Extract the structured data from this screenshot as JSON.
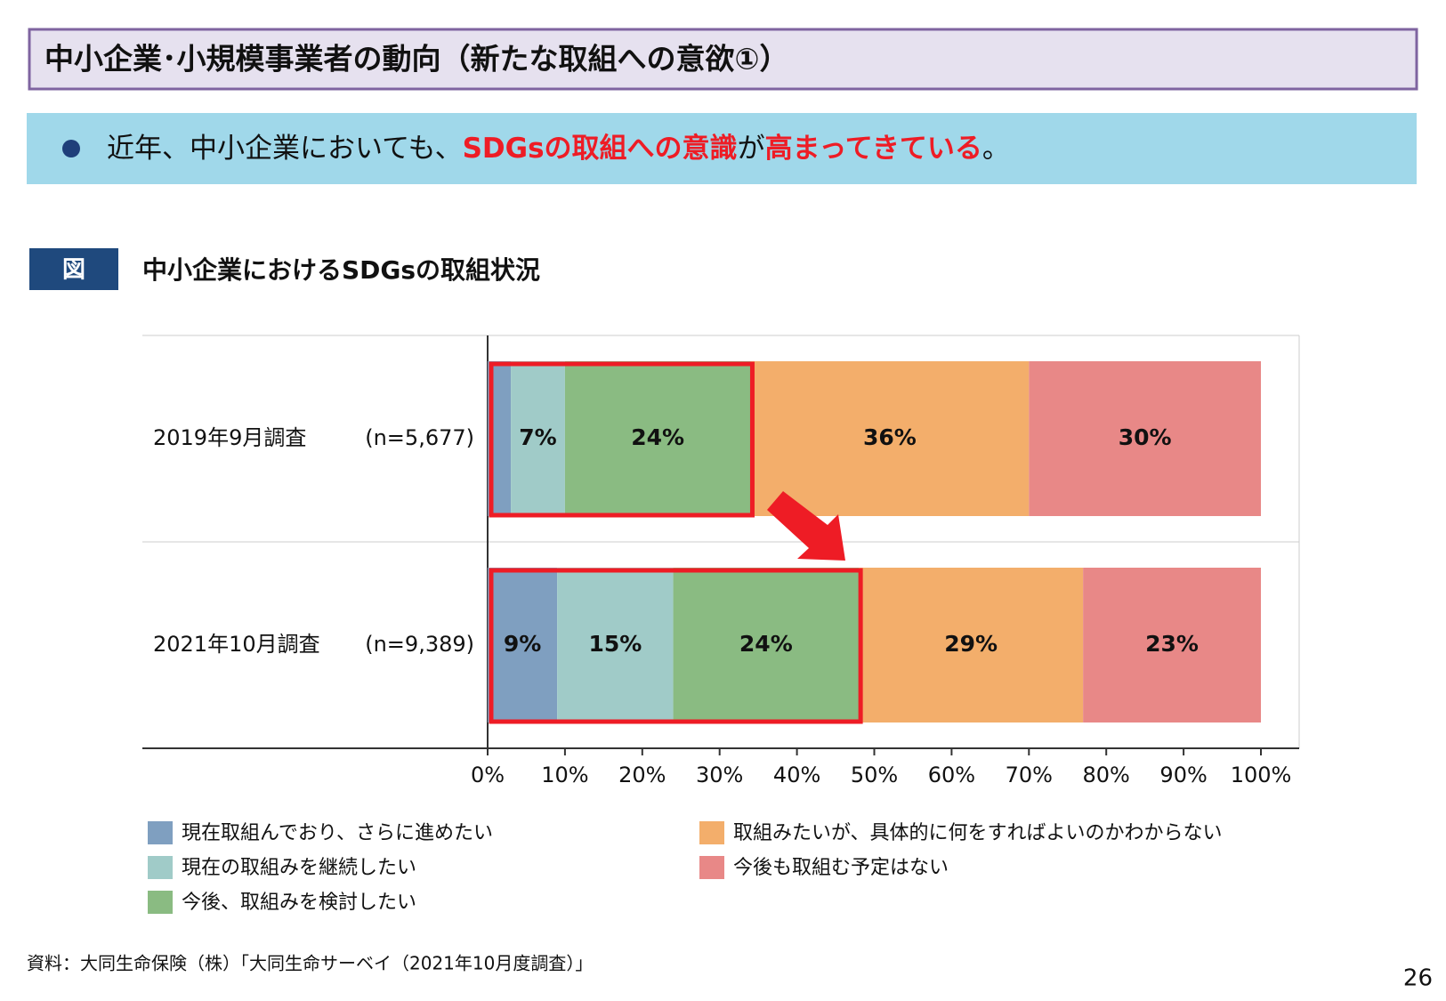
{
  "header": {
    "title": "中小企業･小規模事業者の動向（新たな取組への意欲①）"
  },
  "bullet": {
    "segments": [
      "近年、中小企業においても、",
      "SDGsの取組への意識",
      "が",
      "高まってきている",
      "。"
    ]
  },
  "figure_label": "図",
  "source": "資料：大同生命保険（株）「大同生命サーベイ（2021年10月度調査）」",
  "page_number": "26",
  "chart_data": {
    "type": "stacked_bar_horizontal",
    "title": "中小企業におけるSDGsの取組状況",
    "categories": [
      "2019年9月調査",
      "2021年10月調査"
    ],
    "sample_sizes": [
      "(n=5,677)",
      "(n=9,389)"
    ],
    "series": [
      {
        "name": "現在取組んでおり、さらに進めたい",
        "color": "#7f9fc0",
        "values": [
          3,
          9
        ],
        "value_labels": [
          null,
          "9%"
        ]
      },
      {
        "name": "現在の取組みを継続したい",
        "color": "#a0cbc8",
        "values": [
          7,
          15
        ],
        "value_labels": [
          "7%",
          "15%"
        ]
      },
      {
        "name": "今後、取組みを検討したい",
        "color": "#8abb82",
        "values": [
          24,
          24
        ],
        "value_labels": [
          "24%",
          "24%"
        ]
      },
      {
        "name": "取組みたいが、具体的に何をすればよいのかわからない",
        "color": "#f3ae6b",
        "values": [
          36,
          29
        ],
        "value_labels": [
          "36%",
          "29%"
        ]
      },
      {
        "name": "今後も取組む予定はない",
        "color": "#e88887",
        "values": [
          30,
          23
        ],
        "value_labels": [
          "30%",
          "23%"
        ]
      }
    ],
    "xlim": [
      0,
      100
    ],
    "xticks": [
      {
        "value": 0,
        "label": "0%"
      },
      {
        "value": 10,
        "label": "10%"
      },
      {
        "value": 20,
        "label": "20%"
      },
      {
        "value": 30,
        "label": "30%"
      },
      {
        "value": 40,
        "label": "40%"
      },
      {
        "value": 50,
        "label": "50%"
      },
      {
        "value": 60,
        "label": "60%"
      },
      {
        "value": 70,
        "label": "70%"
      },
      {
        "value": 80,
        "label": "80%"
      },
      {
        "value": 90,
        "label": "90%"
      },
      {
        "value": 100,
        "label": "100%"
      }
    ]
  }
}
